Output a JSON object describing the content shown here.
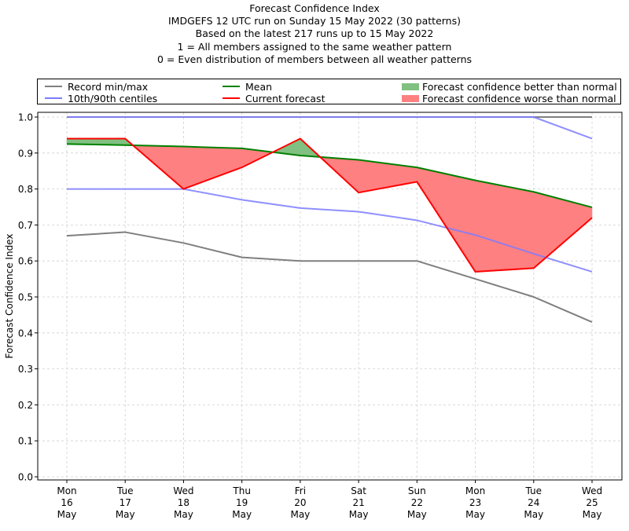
{
  "chart_data": {
    "type": "line",
    "title": "Forecast Confidence Index",
    "subtitle_lines": [
      "IMDGEFS 12 UTC run on Sunday 15 May 2022 (30 patterns)",
      "Based on the latest 217 runs up to 15 May 2022",
      "1 = All members assigned to the same weather pattern",
      "0 = Even distribution of members between all weather patterns"
    ],
    "xlabel": "",
    "ylabel": "Forecast Confidence Index",
    "ylim": [
      0.0,
      1.0
    ],
    "yticks": [
      "0.0",
      "0.1",
      "0.2",
      "0.3",
      "0.4",
      "0.5",
      "0.6",
      "0.7",
      "0.8",
      "0.9",
      "1.0"
    ],
    "grid": true,
    "legend_position": "top, above plot",
    "categories": [
      [
        "Mon",
        "16",
        "May"
      ],
      [
        "Tue",
        "17",
        "May"
      ],
      [
        "Wed",
        "18",
        "May"
      ],
      [
        "Thu",
        "19",
        "May"
      ],
      [
        "Fri",
        "20",
        "May"
      ],
      [
        "Sat",
        "21",
        "May"
      ],
      [
        "Sun",
        "22",
        "May"
      ],
      [
        "Mon",
        "23",
        "May"
      ],
      [
        "Tue",
        "24",
        "May"
      ],
      [
        "Wed",
        "25",
        "May"
      ]
    ],
    "series": [
      {
        "name": "Record max",
        "legend": "Record min/max",
        "color": "#7f7f7f",
        "values": [
          1.0,
          1.0,
          1.0,
          1.0,
          1.0,
          1.0,
          1.0,
          1.0,
          1.0,
          1.0
        ]
      },
      {
        "name": "Record min",
        "legend": "Record min/max",
        "color": "#7f7f7f",
        "values": [
          0.67,
          0.68,
          0.65,
          0.61,
          0.6,
          0.6,
          0.6,
          0.55,
          0.5,
          0.43
        ]
      },
      {
        "name": "90th centile",
        "legend": "10th/90th centiles",
        "color": "#7b7bff",
        "values": [
          1.0,
          1.0,
          1.0,
          1.0,
          1.0,
          1.0,
          1.0,
          1.0,
          1.0,
          0.94
        ]
      },
      {
        "name": "10th centile",
        "legend": "10th/90th centiles",
        "color": "#7b7bff",
        "values": [
          0.8,
          0.8,
          0.8,
          0.77,
          0.747,
          0.737,
          0.713,
          0.672,
          0.62,
          0.57
        ]
      },
      {
        "name": "Mean",
        "legend": "Mean",
        "color": "#008000",
        "values": [
          0.925,
          0.922,
          0.918,
          0.913,
          0.893,
          0.881,
          0.86,
          0.824,
          0.792,
          0.749
        ]
      },
      {
        "name": "Current forecast",
        "legend": "Current forecast",
        "color": "#ff0000",
        "values": [
          0.94,
          0.94,
          0.8,
          0.86,
          0.94,
          0.79,
          0.82,
          0.57,
          0.58,
          0.72
        ]
      }
    ],
    "fills": [
      {
        "name": "Forecast confidence better than normal",
        "color": "#80c080",
        "where": "current forecast > mean"
      },
      {
        "name": "Forecast confidence worse than normal",
        "color": "#ff8080",
        "where": "current forecast < mean"
      }
    ]
  },
  "legend": {
    "items": [
      {
        "label": "Record min/max",
        "kind": "line",
        "color": "#7f7f7f"
      },
      {
        "label": "10th/90th centiles",
        "kind": "line",
        "color": "#7b7bff"
      },
      {
        "label": "Mean",
        "kind": "line",
        "color": "#008000"
      },
      {
        "label": "Current forecast",
        "kind": "line",
        "color": "#ff0000"
      },
      {
        "label": "Forecast confidence better than normal",
        "kind": "patch",
        "color": "#80c080"
      },
      {
        "label": "Forecast confidence worse than normal",
        "kind": "patch",
        "color": "#ff8080"
      }
    ]
  }
}
